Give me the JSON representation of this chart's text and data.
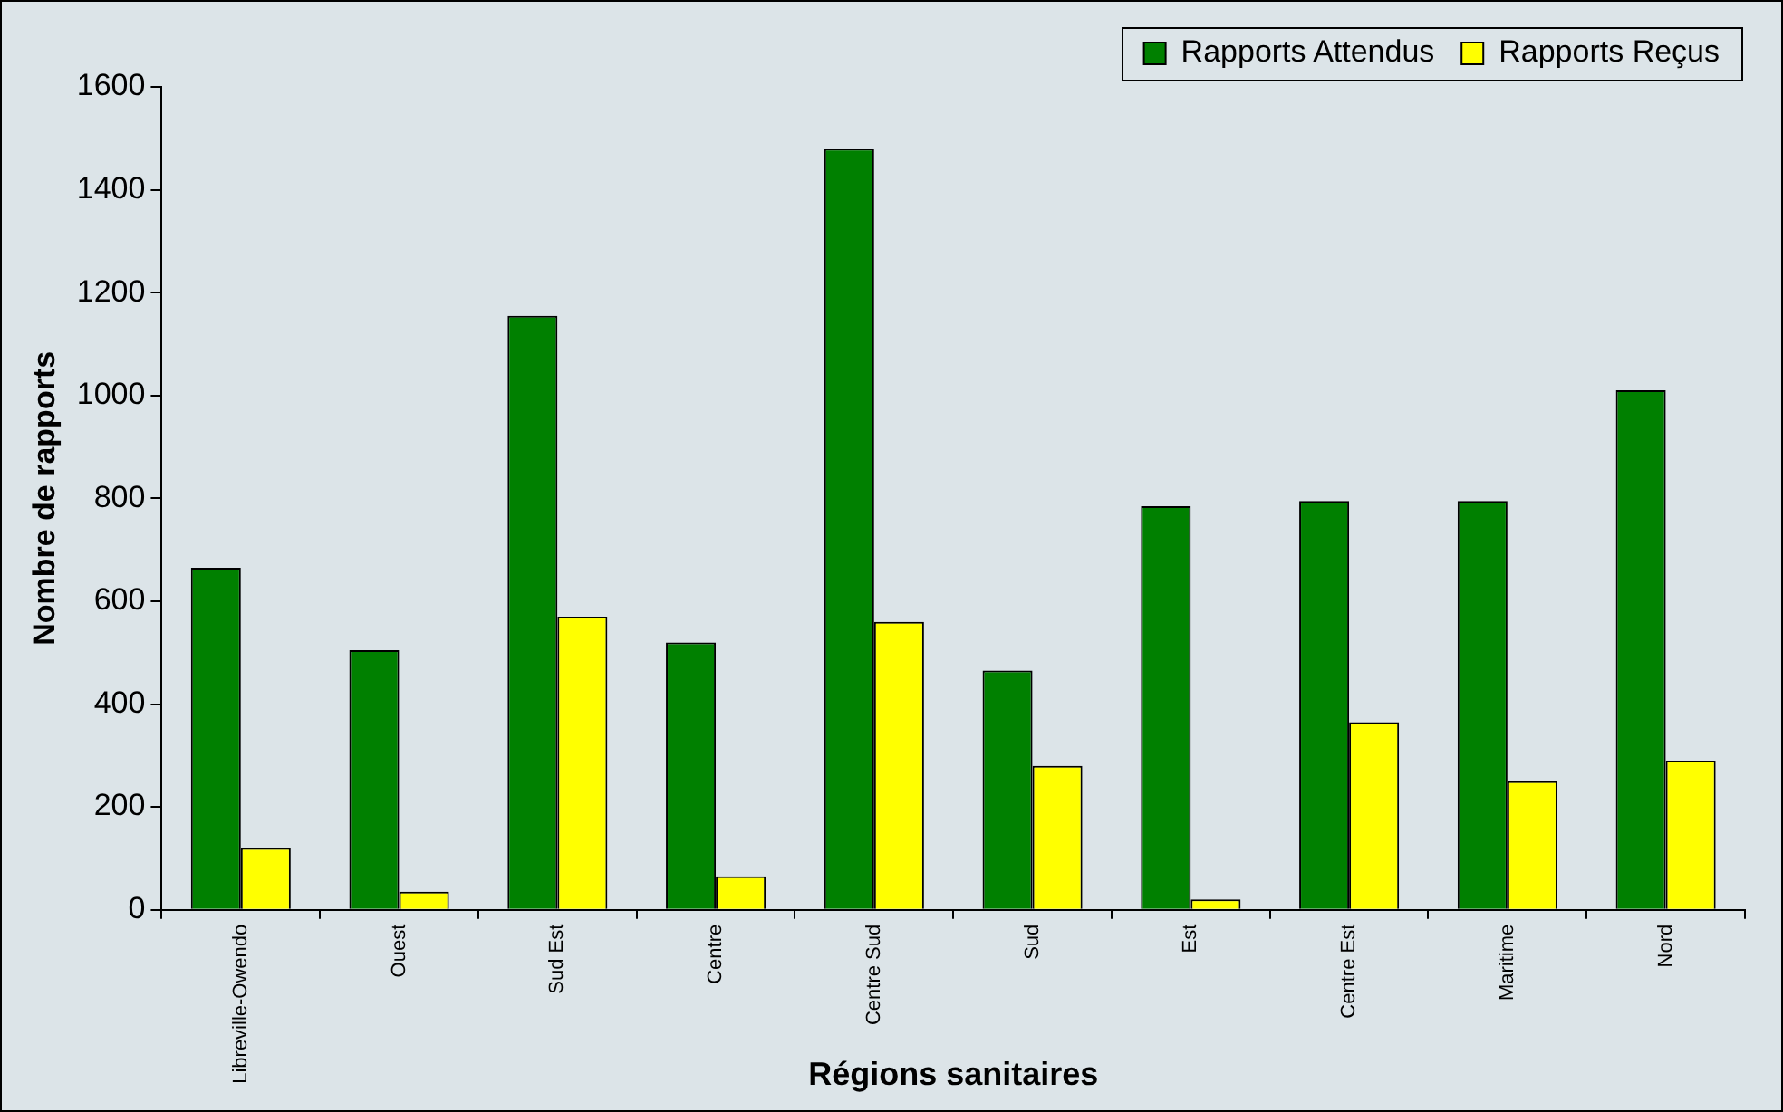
{
  "chart_data": {
    "type": "bar",
    "xlabel": "Régions sanitaires",
    "ylabel": "Nombre de rapports",
    "categories": [
      "Libreville-Owendo",
      "Ouest",
      "Sud Est",
      "Centre",
      "Centre Sud",
      "Sud",
      "Est",
      "Centre Est",
      "Maritime",
      "Nord"
    ],
    "series": [
      {
        "name": "Rapports Attendus",
        "color": "#008000",
        "values": [
          665,
          505,
          1155,
          520,
          1480,
          465,
          785,
          795,
          795,
          1010
        ]
      },
      {
        "name": "Rapports Reçus",
        "color": "#ffff00",
        "values": [
          120,
          35,
          570,
          65,
          560,
          280,
          20,
          365,
          250,
          290
        ]
      }
    ],
    "ylim": [
      0,
      1600
    ],
    "yticks": [
      0,
      200,
      400,
      600,
      800,
      1000,
      1200,
      1400,
      1600
    ],
    "grid": false,
    "legend": "top right"
  }
}
